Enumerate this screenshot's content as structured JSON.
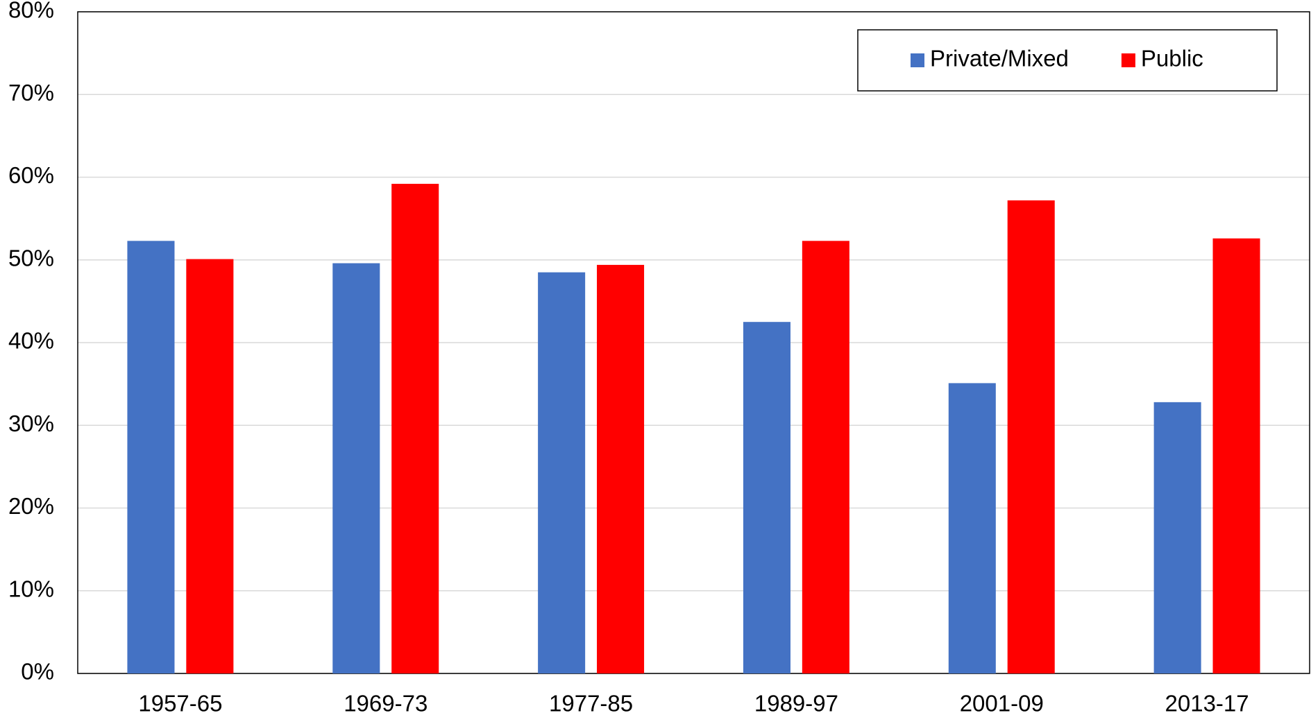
{
  "chart_data": {
    "type": "bar",
    "categories": [
      "1957-65",
      "1969-73",
      "1977-85",
      "1989-97",
      "2001-09",
      "2013-17"
    ],
    "series": [
      {
        "name": "Private/Mixed",
        "color": "#4472c4",
        "values": [
          52.3,
          49.6,
          48.5,
          42.5,
          35.1,
          32.8
        ]
      },
      {
        "name": "Public",
        "color": "#ff0000",
        "values": [
          50.1,
          59.2,
          49.4,
          52.3,
          57.2,
          52.6
        ]
      }
    ],
    "ylim": [
      0,
      80
    ],
    "yticks": [
      {
        "value": 0,
        "label": "0%"
      },
      {
        "value": 10,
        "label": "10%"
      },
      {
        "value": 20,
        "label": "20%"
      },
      {
        "value": 30,
        "label": "30%"
      },
      {
        "value": 40,
        "label": "40%"
      },
      {
        "value": 50,
        "label": "50%"
      },
      {
        "value": 60,
        "label": "60%"
      },
      {
        "value": 70,
        "label": "70%"
      },
      {
        "value": 80,
        "label": "80%"
      }
    ],
    "grid": true,
    "legend": "upper right"
  }
}
